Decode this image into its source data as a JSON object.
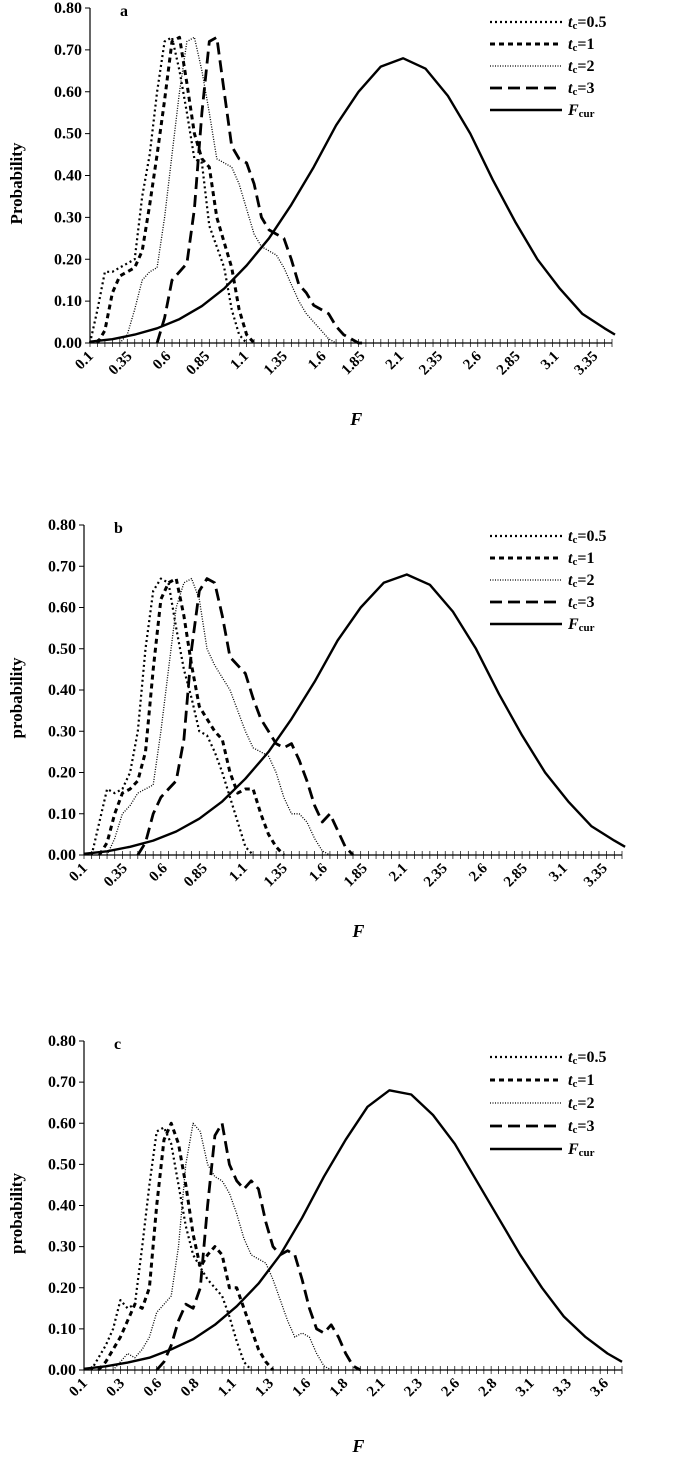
{
  "chart_data": [
    {
      "type": "line",
      "panel_label": "a",
      "ylabel": "Probability",
      "xlabel": "F",
      "ylim": [
        0,
        0.8
      ],
      "yticks": [
        "0.00",
        "0.10",
        "0.20",
        "0.30",
        "0.40",
        "0.50",
        "0.60",
        "0.70",
        "0.80"
      ],
      "xlim": [
        0.1,
        3.6
      ],
      "xticks": [
        "0.1",
        "0.35",
        "0.6",
        "0.85",
        "1.1",
        "1.35",
        "1.6",
        "1.85",
        "2.1",
        "2.35",
        "2.6",
        "2.85",
        "3.1",
        "3.35"
      ],
      "legend_position": "top-right",
      "series": [
        {
          "name": "tc=0.5",
          "label_main": "t",
          "label_sub": "c",
          "label_rest": "=0.5",
          "style": "dotted",
          "x": [
            0.1,
            0.15,
            0.2,
            0.25,
            0.3,
            0.35,
            0.4,
            0.45,
            0.5,
            0.55,
            0.6,
            0.65,
            0.7,
            0.75,
            0.8,
            0.85,
            0.9,
            0.95,
            1.0,
            1.05,
            1.1,
            1.15
          ],
          "y": [
            0.0,
            0.08,
            0.17,
            0.17,
            0.18,
            0.19,
            0.2,
            0.35,
            0.45,
            0.6,
            0.72,
            0.73,
            0.65,
            0.55,
            0.44,
            0.43,
            0.28,
            0.23,
            0.18,
            0.08,
            0.02,
            0.0
          ]
        },
        {
          "name": "tc=1",
          "label_main": "t",
          "label_sub": "c",
          "label_rest": "=1",
          "style": "short-dash",
          "x": [
            0.15,
            0.2,
            0.25,
            0.3,
            0.35,
            0.4,
            0.45,
            0.5,
            0.55,
            0.6,
            0.65,
            0.7,
            0.75,
            0.8,
            0.85,
            0.9,
            0.95,
            1.0,
            1.05,
            1.1,
            1.15,
            1.2
          ],
          "y": [
            0.0,
            0.03,
            0.12,
            0.16,
            0.17,
            0.18,
            0.22,
            0.33,
            0.45,
            0.58,
            0.72,
            0.73,
            0.62,
            0.5,
            0.44,
            0.42,
            0.3,
            0.24,
            0.18,
            0.08,
            0.02,
            0.0
          ]
        },
        {
          "name": "tc=2",
          "label_main": "t",
          "label_sub": "c",
          "label_rest": "=2",
          "style": "fine-dotted",
          "x": [
            0.3,
            0.35,
            0.4,
            0.45,
            0.5,
            0.55,
            0.6,
            0.65,
            0.7,
            0.75,
            0.8,
            0.85,
            0.9,
            0.95,
            1.0,
            1.05,
            1.1,
            1.15,
            1.2,
            1.25,
            1.3,
            1.35,
            1.4,
            1.45,
            1.5,
            1.55,
            1.6,
            1.65,
            1.7,
            1.75
          ],
          "y": [
            0.0,
            0.02,
            0.08,
            0.15,
            0.17,
            0.18,
            0.3,
            0.45,
            0.6,
            0.72,
            0.73,
            0.65,
            0.55,
            0.44,
            0.43,
            0.42,
            0.38,
            0.32,
            0.26,
            0.23,
            0.22,
            0.21,
            0.18,
            0.14,
            0.1,
            0.07,
            0.05,
            0.03,
            0.01,
            0.0
          ]
        },
        {
          "name": "tc=3",
          "label_main": "t",
          "label_sub": "c",
          "label_rest": "=3",
          "style": "long-dash",
          "x": [
            0.55,
            0.6,
            0.65,
            0.7,
            0.75,
            0.8,
            0.85,
            0.9,
            0.95,
            1.0,
            1.05,
            1.1,
            1.15,
            1.2,
            1.25,
            1.3,
            1.35,
            1.4,
            1.45,
            1.5,
            1.55,
            1.6,
            1.65,
            1.7,
            1.75,
            1.8,
            1.85,
            1.9,
            1.95
          ],
          "y": [
            0.0,
            0.06,
            0.15,
            0.17,
            0.19,
            0.32,
            0.55,
            0.72,
            0.73,
            0.6,
            0.47,
            0.44,
            0.43,
            0.38,
            0.3,
            0.27,
            0.26,
            0.25,
            0.2,
            0.14,
            0.12,
            0.09,
            0.08,
            0.07,
            0.04,
            0.02,
            0.01,
            0.0,
            0.0
          ]
        },
        {
          "name": "Fcur",
          "label_main": "F",
          "label_sub": "cur",
          "label_rest": "",
          "style": "solid",
          "x": [
            0.1,
            0.25,
            0.4,
            0.55,
            0.7,
            0.85,
            1.0,
            1.15,
            1.3,
            1.45,
            1.6,
            1.75,
            1.9,
            2.05,
            2.2,
            2.35,
            2.5,
            2.65,
            2.8,
            2.95,
            3.1,
            3.25,
            3.4,
            3.55,
            3.62
          ],
          "y": [
            0.003,
            0.009,
            0.02,
            0.035,
            0.057,
            0.088,
            0.13,
            0.185,
            0.25,
            0.33,
            0.42,
            0.52,
            0.6,
            0.66,
            0.68,
            0.655,
            0.59,
            0.5,
            0.39,
            0.29,
            0.2,
            0.13,
            0.07,
            0.035,
            0.02
          ]
        }
      ]
    },
    {
      "type": "line",
      "panel_label": "b",
      "ylabel": "probability",
      "xlabel": "F",
      "ylim": [
        0,
        0.8
      ],
      "yticks": [
        "0.00",
        "0.10",
        "0.20",
        "0.30",
        "0.40",
        "0.50",
        "0.60",
        "0.70",
        "0.80"
      ],
      "xlim": [
        0.1,
        3.6
      ],
      "xticks": [
        "0.1",
        "0.35",
        "0.6",
        "0.85",
        "1.1",
        "1.35",
        "1.6",
        "1.85",
        "2.1",
        "2.35",
        "2.6",
        "2.85",
        "3.1",
        "3.35"
      ],
      "legend_position": "top-right",
      "series": [
        {
          "name": "tc=0.5",
          "label_main": "t",
          "label_sub": "c",
          "label_rest": "=0.5",
          "style": "dotted",
          "x": [
            0.15,
            0.2,
            0.25,
            0.3,
            0.35,
            0.4,
            0.45,
            0.5,
            0.55,
            0.6,
            0.65,
            0.7,
            0.75,
            0.8,
            0.85,
            0.9,
            0.95,
            1.0,
            1.05,
            1.1,
            1.15,
            1.2
          ],
          "y": [
            0.0,
            0.08,
            0.16,
            0.15,
            0.16,
            0.2,
            0.3,
            0.5,
            0.64,
            0.67,
            0.66,
            0.55,
            0.45,
            0.38,
            0.3,
            0.29,
            0.25,
            0.2,
            0.14,
            0.08,
            0.02,
            0.0
          ]
        },
        {
          "name": "tc=1",
          "label_main": "t",
          "label_sub": "c",
          "label_rest": "=1",
          "style": "short-dash",
          "x": [
            0.2,
            0.25,
            0.3,
            0.35,
            0.4,
            0.45,
            0.5,
            0.55,
            0.6,
            0.65,
            0.7,
            0.75,
            0.8,
            0.85,
            0.9,
            0.95,
            1.0,
            1.05,
            1.1,
            1.15,
            1.2,
            1.25,
            1.3,
            1.35,
            1.4
          ],
          "y": [
            0.0,
            0.03,
            0.1,
            0.15,
            0.16,
            0.18,
            0.25,
            0.45,
            0.62,
            0.66,
            0.67,
            0.58,
            0.46,
            0.36,
            0.33,
            0.3,
            0.28,
            0.2,
            0.15,
            0.16,
            0.16,
            0.1,
            0.05,
            0.02,
            0.0
          ]
        },
        {
          "name": "tc=2",
          "label_main": "t",
          "label_sub": "c",
          "label_rest": "=2",
          "style": "fine-dotted",
          "x": [
            0.25,
            0.3,
            0.35,
            0.4,
            0.45,
            0.5,
            0.55,
            0.6,
            0.65,
            0.7,
            0.75,
            0.8,
            0.85,
            0.9,
            0.95,
            1.0,
            1.05,
            1.1,
            1.15,
            1.2,
            1.25,
            1.3,
            1.35,
            1.4,
            1.45,
            1.5,
            1.55,
            1.6,
            1.65,
            1.7
          ],
          "y": [
            0.0,
            0.04,
            0.1,
            0.12,
            0.15,
            0.16,
            0.17,
            0.3,
            0.45,
            0.6,
            0.66,
            0.67,
            0.62,
            0.5,
            0.46,
            0.43,
            0.4,
            0.35,
            0.3,
            0.26,
            0.25,
            0.24,
            0.2,
            0.14,
            0.1,
            0.1,
            0.08,
            0.04,
            0.01,
            0.0
          ]
        },
        {
          "name": "tc=3",
          "label_main": "t",
          "label_sub": "c",
          "label_rest": "=3",
          "style": "long-dash",
          "x": [
            0.45,
            0.5,
            0.55,
            0.6,
            0.65,
            0.7,
            0.75,
            0.8,
            0.85,
            0.9,
            0.95,
            1.0,
            1.05,
            1.1,
            1.15,
            1.2,
            1.25,
            1.3,
            1.35,
            1.4,
            1.45,
            1.5,
            1.55,
            1.6,
            1.65,
            1.7,
            1.75,
            1.8,
            1.85
          ],
          "y": [
            0.0,
            0.03,
            0.1,
            0.14,
            0.16,
            0.18,
            0.28,
            0.5,
            0.64,
            0.67,
            0.66,
            0.58,
            0.48,
            0.46,
            0.44,
            0.38,
            0.33,
            0.3,
            0.27,
            0.26,
            0.27,
            0.23,
            0.18,
            0.12,
            0.08,
            0.1,
            0.06,
            0.02,
            0.0
          ]
        },
        {
          "name": "Fcur",
          "label_main": "F",
          "label_sub": "cur",
          "label_rest": "",
          "style": "solid",
          "x": [
            0.1,
            0.25,
            0.4,
            0.55,
            0.7,
            0.85,
            1.0,
            1.15,
            1.3,
            1.45,
            1.6,
            1.75,
            1.9,
            2.05,
            2.2,
            2.35,
            2.5,
            2.65,
            2.8,
            2.95,
            3.1,
            3.25,
            3.4,
            3.55,
            3.62
          ],
          "y": [
            0.003,
            0.009,
            0.02,
            0.035,
            0.057,
            0.088,
            0.13,
            0.185,
            0.25,
            0.33,
            0.42,
            0.52,
            0.6,
            0.66,
            0.68,
            0.655,
            0.59,
            0.5,
            0.39,
            0.29,
            0.2,
            0.13,
            0.07,
            0.035,
            0.02
          ]
        }
      ]
    },
    {
      "type": "line",
      "panel_label": "c",
      "ylabel": "probability",
      "xlabel": "F",
      "ylim": [
        0,
        0.8
      ],
      "yticks": [
        "0.00",
        "0.10",
        "0.20",
        "0.30",
        "0.40",
        "0.50",
        "0.60",
        "0.70",
        "0.80"
      ],
      "xlim": [
        0.1,
        3.8
      ],
      "xticks": [
        "0.1",
        "0.3",
        "0.6",
        "0.8",
        "1.1",
        "1.3",
        "1.6",
        "1.8",
        "2.1",
        "2.3",
        "2.6",
        "2.8",
        "3.1",
        "3.3",
        "3.6"
      ],
      "legend_position": "top-right",
      "series": [
        {
          "name": "tc=0.5",
          "label_main": "t",
          "label_sub": "c",
          "label_rest": "=0.5",
          "style": "dotted",
          "x": [
            0.15,
            0.2,
            0.25,
            0.3,
            0.35,
            0.4,
            0.45,
            0.5,
            0.55,
            0.6,
            0.65,
            0.7,
            0.75,
            0.8,
            0.85,
            0.9,
            0.95,
            1.0,
            1.05,
            1.1,
            1.15,
            1.2,
            1.25
          ],
          "y": [
            0.0,
            0.03,
            0.06,
            0.1,
            0.17,
            0.15,
            0.16,
            0.3,
            0.45,
            0.58,
            0.59,
            0.55,
            0.45,
            0.35,
            0.28,
            0.25,
            0.22,
            0.2,
            0.18,
            0.13,
            0.07,
            0.02,
            0.0
          ]
        },
        {
          "name": "tc=1",
          "label_main": "t",
          "label_sub": "c",
          "label_rest": "=1",
          "style": "short-dash",
          "x": [
            0.2,
            0.25,
            0.3,
            0.35,
            0.4,
            0.45,
            0.5,
            0.55,
            0.6,
            0.65,
            0.7,
            0.75,
            0.8,
            0.85,
            0.9,
            0.95,
            1.0,
            1.05,
            1.1,
            1.15,
            1.2,
            1.25,
            1.3,
            1.35,
            1.4
          ],
          "y": [
            0.0,
            0.02,
            0.05,
            0.08,
            0.12,
            0.16,
            0.15,
            0.2,
            0.4,
            0.56,
            0.6,
            0.55,
            0.45,
            0.33,
            0.25,
            0.28,
            0.3,
            0.28,
            0.2,
            0.2,
            0.15,
            0.1,
            0.05,
            0.02,
            0.0
          ]
        },
        {
          "name": "tc=2",
          "label_main": "t",
          "label_sub": "c",
          "label_rest": "=2",
          "style": "fine-dotted",
          "x": [
            0.3,
            0.35,
            0.4,
            0.45,
            0.5,
            0.55,
            0.6,
            0.65,
            0.7,
            0.75,
            0.8,
            0.85,
            0.9,
            0.95,
            1.0,
            1.05,
            1.1,
            1.15,
            1.2,
            1.25,
            1.3,
            1.35,
            1.4,
            1.45,
            1.5,
            1.55,
            1.6,
            1.65,
            1.7,
            1.75,
            1.8
          ],
          "y": [
            0.0,
            0.02,
            0.04,
            0.03,
            0.05,
            0.08,
            0.14,
            0.16,
            0.18,
            0.3,
            0.5,
            0.6,
            0.58,
            0.5,
            0.47,
            0.46,
            0.43,
            0.38,
            0.32,
            0.28,
            0.27,
            0.26,
            0.22,
            0.17,
            0.12,
            0.08,
            0.09,
            0.08,
            0.04,
            0.01,
            0.0
          ]
        },
        {
          "name": "tc=3",
          "label_main": "t",
          "label_sub": "c",
          "label_rest": "=3",
          "style": "long-dash",
          "x": [
            0.6,
            0.65,
            0.7,
            0.75,
            0.8,
            0.85,
            0.9,
            0.95,
            1.0,
            1.05,
            1.1,
            1.15,
            1.2,
            1.25,
            1.3,
            1.35,
            1.4,
            1.45,
            1.5,
            1.55,
            1.6,
            1.65,
            1.7,
            1.75,
            1.8,
            1.85,
            1.9,
            1.95,
            2.0
          ],
          "y": [
            0.0,
            0.02,
            0.06,
            0.12,
            0.16,
            0.15,
            0.2,
            0.4,
            0.57,
            0.6,
            0.5,
            0.46,
            0.44,
            0.46,
            0.44,
            0.36,
            0.3,
            0.28,
            0.29,
            0.28,
            0.22,
            0.15,
            0.1,
            0.09,
            0.11,
            0.08,
            0.04,
            0.01,
            0.0
          ]
        },
        {
          "name": "Fcur",
          "label_main": "F",
          "label_sub": "cur",
          "label_rest": "",
          "style": "solid",
          "x": [
            0.1,
            0.25,
            0.4,
            0.55,
            0.7,
            0.85,
            1.0,
            1.15,
            1.3,
            1.45,
            1.6,
            1.75,
            1.9,
            2.05,
            2.2,
            2.35,
            2.5,
            2.65,
            2.8,
            2.95,
            3.1,
            3.25,
            3.4,
            3.55,
            3.7,
            3.8
          ],
          "y": [
            0.003,
            0.009,
            0.018,
            0.03,
            0.05,
            0.075,
            0.11,
            0.155,
            0.21,
            0.28,
            0.37,
            0.47,
            0.56,
            0.64,
            0.68,
            0.67,
            0.62,
            0.55,
            0.46,
            0.37,
            0.28,
            0.2,
            0.13,
            0.08,
            0.04,
            0.02
          ]
        }
      ]
    }
  ]
}
